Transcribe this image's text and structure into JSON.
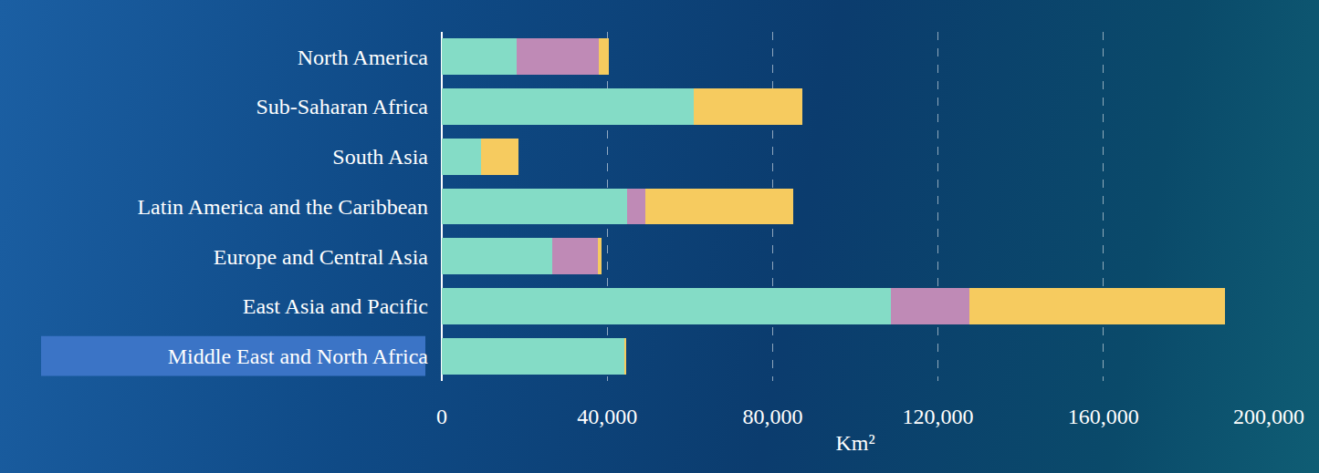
{
  "chart_data": {
    "type": "bar",
    "orientation": "horizontal",
    "stacked": true,
    "grid": true,
    "categories": [
      "North America",
      "Sub-Saharan Africa",
      "South Asia",
      "Latin America and the Caribbean",
      "Europe and Central Asia",
      "East Asia and Pacific",
      "Middle East and North Africa"
    ],
    "series": [
      {
        "color": "#84dcc6",
        "values": [
          18000,
          61000,
          9500,
          44800,
          26600,
          108600,
          44200
        ]
      },
      {
        "color": "#bf8ab6",
        "values": [
          20000,
          0,
          0,
          4400,
          11200,
          18900,
          0
        ]
      },
      {
        "color": "#f6cb5f",
        "values": [
          2400,
          26200,
          9000,
          35800,
          900,
          62000,
          300
        ]
      }
    ],
    "x_label": "Km²",
    "xlim": [
      0,
      200000
    ],
    "xticks": [
      0,
      {
        "value": 40000,
        "label": "40,000"
      },
      {
        "value": 80000,
        "label": "80,000"
      },
      {
        "value": 120000,
        "label": "120,000"
      },
      {
        "value": 160000,
        "label": "160,000"
      },
      {
        "value": 200000,
        "label": "200,000"
      }
    ]
  }
}
